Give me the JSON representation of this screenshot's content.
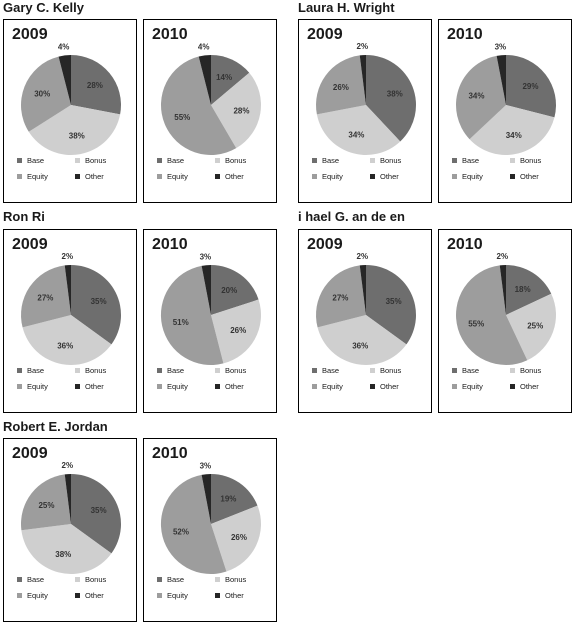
{
  "colors": {
    "Base": "#6e6e6e",
    "Bonus": "#cfcfcf",
    "Equity": "#9d9d9d",
    "Other": "#262626"
  },
  "legend_labels": [
    "Base",
    "Bonus",
    "Equity",
    "Other"
  ],
  "executives": [
    {
      "name": "Gary C. Kelly"
    },
    {
      "name": "Laura H. Wright"
    },
    {
      "name": "Ron Ri"
    },
    {
      "name": "i  hael G.   an de   en"
    },
    {
      "name": "Robert E. Jordan"
    }
  ],
  "chart_data": [
    {
      "type": "pie",
      "executive": "Gary C. Kelly",
      "title": "2009",
      "labels": [
        "Base",
        "Bonus",
        "Equity",
        "Other"
      ],
      "values": [
        28,
        38,
        30,
        4
      ]
    },
    {
      "type": "pie",
      "executive": "Gary C. Kelly",
      "title": "2010",
      "labels": [
        "Base",
        "Bonus",
        "Equity",
        "Other"
      ],
      "values": [
        14,
        28,
        55,
        4
      ]
    },
    {
      "type": "pie",
      "executive": "Laura H. Wright",
      "title": "2009",
      "labels": [
        "Base",
        "Bonus",
        "Equity",
        "Other"
      ],
      "values": [
        38,
        34,
        26,
        2
      ]
    },
    {
      "type": "pie",
      "executive": "Laura H. Wright",
      "title": "2010",
      "labels": [
        "Base",
        "Bonus",
        "Equity",
        "Other"
      ],
      "values": [
        29,
        34,
        34,
        3
      ]
    },
    {
      "type": "pie",
      "executive": "Ron Ri",
      "title": "2009",
      "labels": [
        "Base",
        "Bonus",
        "Equity",
        "Other"
      ],
      "values": [
        35,
        36,
        27,
        2
      ]
    },
    {
      "type": "pie",
      "executive": "Ron Ri",
      "title": "2010",
      "labels": [
        "Base",
        "Bonus",
        "Equity",
        "Other"
      ],
      "values": [
        20,
        26,
        51,
        3
      ]
    },
    {
      "type": "pie",
      "executive": "i  hael G.   an de   en",
      "title": "2009",
      "labels": [
        "Base",
        "Bonus",
        "Equity",
        "Other"
      ],
      "values": [
        35,
        36,
        27,
        2
      ]
    },
    {
      "type": "pie",
      "executive": "i  hael G.   an de   en",
      "title": "2010",
      "labels": [
        "Base",
        "Bonus",
        "Equity",
        "Other"
      ],
      "values": [
        18,
        25,
        55,
        2
      ]
    },
    {
      "type": "pie",
      "executive": "Robert E. Jordan",
      "title": "2009",
      "labels": [
        "Base",
        "Bonus",
        "Equity",
        "Other"
      ],
      "values": [
        35,
        38,
        25,
        2
      ]
    },
    {
      "type": "pie",
      "executive": "Robert E. Jordan",
      "title": "2010",
      "labels": [
        "Base",
        "Bonus",
        "Equity",
        "Other"
      ],
      "values": [
        19,
        26,
        52,
        3
      ]
    }
  ]
}
